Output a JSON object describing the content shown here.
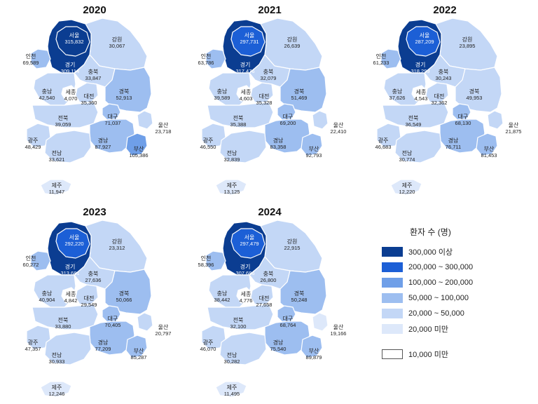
{
  "legend": {
    "title": "환자 수 (명)",
    "bins": [
      {
        "label": "300,000 이상",
        "color": "#0b3d91"
      },
      {
        "label": "200,000 ~ 300,000",
        "color": "#1c5fd6"
      },
      {
        "label": "100,000 ~ 200,000",
        "color": "#6f9fe8"
      },
      {
        "label": "50,000 ~ 100,000",
        "color": "#9dbef0"
      },
      {
        "label": "20,000 ~ 50,000",
        "color": "#c3d7f6"
      },
      {
        "label": "20,000 미만",
        "color": "#dde8fa"
      }
    ],
    "low": {
      "label": "10,000 미만",
      "color": "#ffffff"
    }
  },
  "maps": [
    {
      "year": "2020",
      "regions": {
        "seoul": {
          "name": "서울",
          "value": "315,832"
        },
        "gyeonggi": {
          "name": "경기",
          "value": "309,114"
        },
        "incheon": {
          "name": "인천",
          "value": "69,589"
        },
        "gangwon": {
          "name": "강원",
          "value": "30,067"
        },
        "chungbuk": {
          "name": "충북",
          "value": "33,847"
        },
        "chungnam": {
          "name": "충남",
          "value": "42,540"
        },
        "sejong": {
          "name": "세종",
          "value": "4,070"
        },
        "daejeon": {
          "name": "대전",
          "value": "35,360"
        },
        "gyeongbuk": {
          "name": "경북",
          "value": "52,913"
        },
        "daegu": {
          "name": "대구",
          "value": "71,037"
        },
        "jeonbuk": {
          "name": "전북",
          "value": "39,059"
        },
        "ulsan": {
          "name": "울산",
          "value": "23,718"
        },
        "gwangju": {
          "name": "광주",
          "value": "48,429"
        },
        "gyeongnam": {
          "name": "경남",
          "value": "87,927"
        },
        "jeonnam": {
          "name": "전남",
          "value": "33,621"
        },
        "busan": {
          "name": "부산",
          "value": "105,386"
        },
        "jeju": {
          "name": "제주",
          "value": "11,947"
        }
      }
    },
    {
      "year": "2021",
      "regions": {
        "seoul": {
          "name": "서울",
          "value": "297,731"
        },
        "gyeonggi": {
          "name": "경기",
          "value": "317,476"
        },
        "incheon": {
          "name": "인천",
          "value": "63,786"
        },
        "gangwon": {
          "name": "강원",
          "value": "26,639"
        },
        "chungbuk": {
          "name": "충북",
          "value": "32,079"
        },
        "chungnam": {
          "name": "충남",
          "value": "39,589"
        },
        "sejong": {
          "name": "세종",
          "value": "4,603"
        },
        "daejeon": {
          "name": "대전",
          "value": "35,328"
        },
        "gyeongbuk": {
          "name": "경북",
          "value": "51,469"
        },
        "daegu": {
          "name": "대구",
          "value": "69,200"
        },
        "jeonbuk": {
          "name": "전북",
          "value": "35,388"
        },
        "ulsan": {
          "name": "울산",
          "value": "22,410"
        },
        "gwangju": {
          "name": "광주",
          "value": "46,550"
        },
        "gyeongnam": {
          "name": "경남",
          "value": "83,358"
        },
        "jeonnam": {
          "name": "전남",
          "value": "32,839"
        },
        "busan": {
          "name": "부산",
          "value": "92,793"
        },
        "jeju": {
          "name": "제주",
          "value": "13,125"
        }
      }
    },
    {
      "year": "2022",
      "regions": {
        "seoul": {
          "name": "서울",
          "value": "287,209"
        },
        "gyeonggi": {
          "name": "경기",
          "value": "318,299"
        },
        "incheon": {
          "name": "인천",
          "value": "61,233"
        },
        "gangwon": {
          "name": "강원",
          "value": "23,895"
        },
        "chungbuk": {
          "name": "충북",
          "value": "30,243"
        },
        "chungnam": {
          "name": "충남",
          "value": "37,626"
        },
        "sejong": {
          "name": "세종",
          "value": "4,543"
        },
        "daejeon": {
          "name": "대전",
          "value": "32,362"
        },
        "gyeongbuk": {
          "name": "경북",
          "value": "49,953"
        },
        "daegu": {
          "name": "대구",
          "value": "68,130"
        },
        "jeonbuk": {
          "name": "전북",
          "value": "36,549"
        },
        "ulsan": {
          "name": "울산",
          "value": "21,875"
        },
        "gwangju": {
          "name": "광주",
          "value": "46,683"
        },
        "gyeongnam": {
          "name": "경남",
          "value": "76,711"
        },
        "jeonnam": {
          "name": "전남",
          "value": "30,774"
        },
        "busan": {
          "name": "부산",
          "value": "81,453"
        },
        "jeju": {
          "name": "제주",
          "value": "12,220"
        }
      }
    },
    {
      "year": "2023",
      "regions": {
        "seoul": {
          "name": "서울",
          "value": "292,220"
        },
        "gyeonggi": {
          "name": "경기",
          "value": "313,681"
        },
        "incheon": {
          "name": "인천",
          "value": "60,272"
        },
        "gangwon": {
          "name": "강원",
          "value": "23,312"
        },
        "chungbuk": {
          "name": "충북",
          "value": "27,636"
        },
        "chungnam": {
          "name": "충남",
          "value": "40,904"
        },
        "sejong": {
          "name": "세종",
          "value": "4,842"
        },
        "daejeon": {
          "name": "대전",
          "value": "29,549"
        },
        "gyeongbuk": {
          "name": "경북",
          "value": "50,066"
        },
        "daegu": {
          "name": "대구",
          "value": "70,405"
        },
        "jeonbuk": {
          "name": "전북",
          "value": "33,880"
        },
        "ulsan": {
          "name": "울산",
          "value": "20,797"
        },
        "gwangju": {
          "name": "광주",
          "value": "47,357"
        },
        "gyeongnam": {
          "name": "경남",
          "value": "77,209"
        },
        "jeonnam": {
          "name": "전남",
          "value": "30,933"
        },
        "busan": {
          "name": "부산",
          "value": "85,287"
        },
        "jeju": {
          "name": "제주",
          "value": "12,246"
        }
      }
    },
    {
      "year": "2024",
      "regions": {
        "seoul": {
          "name": "서울",
          "value": "297,479"
        },
        "gyeonggi": {
          "name": "경기",
          "value": "307,686"
        },
        "incheon": {
          "name": "인천",
          "value": "58,396"
        },
        "gangwon": {
          "name": "강원",
          "value": "22,915"
        },
        "chungbuk": {
          "name": "충북",
          "value": "26,800"
        },
        "chungnam": {
          "name": "충남",
          "value": "38,442"
        },
        "sejong": {
          "name": "세종",
          "value": "4,776"
        },
        "daejeon": {
          "name": "대전",
          "value": "27,658"
        },
        "gyeongbuk": {
          "name": "경북",
          "value": "50,248"
        },
        "daegu": {
          "name": "대구",
          "value": "68,764"
        },
        "jeonbuk": {
          "name": "전북",
          "value": "32,100"
        },
        "ulsan": {
          "name": "울산",
          "value": "19,166"
        },
        "gwangju": {
          "name": "광주",
          "value": "46,070"
        },
        "gyeongnam": {
          "name": "경남",
          "value": "75,540"
        },
        "jeonnam": {
          "name": "전남",
          "value": "30,282"
        },
        "busan": {
          "name": "부산",
          "value": "89,879"
        },
        "jeju": {
          "name": "제주",
          "value": "11,495"
        }
      }
    }
  ]
}
